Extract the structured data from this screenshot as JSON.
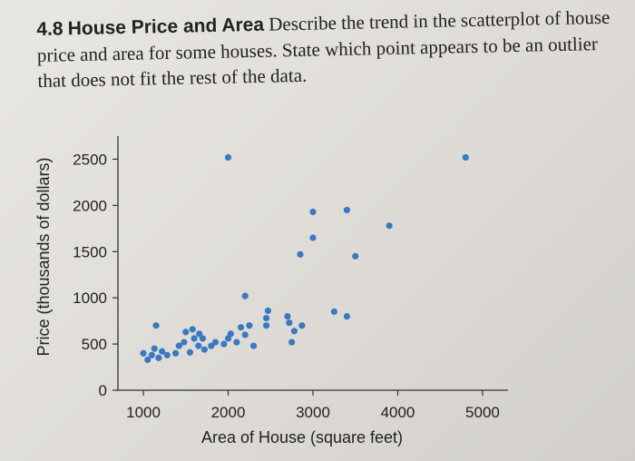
{
  "problem": {
    "number": "4.8",
    "title": "House Price and Area",
    "text": "Describe the trend in the scatterplot of house price and area for some houses. State which point appears to be an outlier that does not fit the rest of the data."
  },
  "colors": {
    "point": "#3a78c2",
    "axis": "#333333"
  },
  "chart_data": {
    "type": "scatter",
    "xlabel": "Area of House (square feet)",
    "ylabel": "Price (thousands of dollars)",
    "xlim": [
      700,
      5300
    ],
    "ylim": [
      0,
      2750
    ],
    "xticks": [
      1000,
      2000,
      3000,
      4000,
      5000
    ],
    "yticks": [
      0,
      500,
      1000,
      1500,
      2000,
      2500
    ],
    "points": [
      {
        "x": 1000,
        "y": 400
      },
      {
        "x": 1050,
        "y": 330
      },
      {
        "x": 1100,
        "y": 380
      },
      {
        "x": 1130,
        "y": 450
      },
      {
        "x": 1180,
        "y": 350
      },
      {
        "x": 1220,
        "y": 420
      },
      {
        "x": 1280,
        "y": 380
      },
      {
        "x": 1150,
        "y": 700
      },
      {
        "x": 1380,
        "y": 400
      },
      {
        "x": 1420,
        "y": 480
      },
      {
        "x": 1480,
        "y": 520
      },
      {
        "x": 1500,
        "y": 630
      },
      {
        "x": 1550,
        "y": 410
      },
      {
        "x": 1580,
        "y": 660
      },
      {
        "x": 1600,
        "y": 560
      },
      {
        "x": 1650,
        "y": 480
      },
      {
        "x": 1660,
        "y": 610
      },
      {
        "x": 1700,
        "y": 560
      },
      {
        "x": 1720,
        "y": 440
      },
      {
        "x": 1800,
        "y": 480
      },
      {
        "x": 1850,
        "y": 520
      },
      {
        "x": 1950,
        "y": 500
      },
      {
        "x": 2000,
        "y": 560
      },
      {
        "x": 2030,
        "y": 610
      },
      {
        "x": 2100,
        "y": 520
      },
      {
        "x": 2150,
        "y": 680
      },
      {
        "x": 2200,
        "y": 600
      },
      {
        "x": 2250,
        "y": 700
      },
      {
        "x": 2300,
        "y": 480
      },
      {
        "x": 2450,
        "y": 700
      },
      {
        "x": 2450,
        "y": 780
      },
      {
        "x": 2470,
        "y": 860
      },
      {
        "x": 2700,
        "y": 800
      },
      {
        "x": 2720,
        "y": 730
      },
      {
        "x": 2750,
        "y": 520
      },
      {
        "x": 2780,
        "y": 640
      },
      {
        "x": 2870,
        "y": 700
      },
      {
        "x": 2200,
        "y": 1020
      },
      {
        "x": 2850,
        "y": 1470
      },
      {
        "x": 3000,
        "y": 1650
      },
      {
        "x": 3000,
        "y": 1930
      },
      {
        "x": 3250,
        "y": 850
      },
      {
        "x": 3400,
        "y": 800
      },
      {
        "x": 3400,
        "y": 1950
      },
      {
        "x": 3500,
        "y": 1450
      },
      {
        "x": 3900,
        "y": 1780
      },
      {
        "x": 2000,
        "y": 2520
      },
      {
        "x": 4800,
        "y": 2520
      }
    ]
  }
}
